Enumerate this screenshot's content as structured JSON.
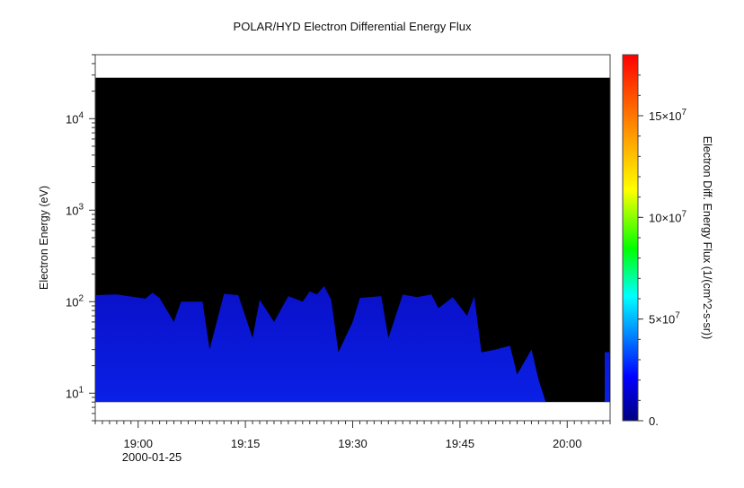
{
  "chart_data": {
    "type": "heatmap",
    "title": "POLAR/HYD  Electron Differential Energy Flux",
    "xlabel": "",
    "ylabel": "Electron Energy (eV)",
    "x_date": "2000-01-25",
    "x_range": [
      "18:54",
      "20:06"
    ],
    "x_ticks": [
      "19:00",
      "19:15",
      "19:30",
      "19:45",
      "20:00"
    ],
    "y_scale": "log",
    "y_range": [
      5,
      50000
    ],
    "y_ticks": [
      {
        "base": "10",
        "exp": "1"
      },
      {
        "base": "10",
        "exp": "2"
      },
      {
        "base": "10",
        "exp": "3"
      },
      {
        "base": "10",
        "exp": "4"
      }
    ],
    "data_energy_range_eV": [
      8,
      28000
    ],
    "colorbar": {
      "label": "Electron Diff. Energy Flux (1/(cm^2-s-sr))",
      "range": [
        0,
        180000000
      ],
      "ticks": [
        {
          "text": "0.",
          "exp": "",
          "value": 0
        },
        {
          "text": "5×10",
          "exp": "7",
          "value": 50000000
        },
        {
          "text": "10×10",
          "exp": "7",
          "value": 100000000
        },
        {
          "text": "15×10",
          "exp": "7",
          "value": 150000000
        }
      ],
      "colors": [
        "#000080",
        "#0000ff",
        "#00ffff",
        "#00ff00",
        "#ffff00",
        "#ff8000",
        "#ff0000"
      ]
    },
    "background_color": "#000000",
    "fill_color": "#0a14d4",
    "upper_envelope_eV": [
      {
        "t": "18:54",
        "e": 118
      },
      {
        "t": "18:57",
        "e": 120
      },
      {
        "t": "19:01",
        "e": 108
      },
      {
        "t": "19:02",
        "e": 125
      },
      {
        "t": "19:03",
        "e": 110
      },
      {
        "t": "19:05",
        "e": 60
      },
      {
        "t": "19:06",
        "e": 100
      },
      {
        "t": "19:09",
        "e": 100
      },
      {
        "t": "19:10",
        "e": 30
      },
      {
        "t": "19:12",
        "e": 122
      },
      {
        "t": "19:14",
        "e": 118
      },
      {
        "t": "19:16",
        "e": 40
      },
      {
        "t": "19:17",
        "e": 105
      },
      {
        "t": "19:19",
        "e": 60
      },
      {
        "t": "19:21",
        "e": 115
      },
      {
        "t": "19:23",
        "e": 100
      },
      {
        "t": "19:24",
        "e": 130
      },
      {
        "t": "19:25",
        "e": 120
      },
      {
        "t": "19:26",
        "e": 148
      },
      {
        "t": "19:27",
        "e": 105
      },
      {
        "t": "19:28",
        "e": 28
      },
      {
        "t": "19:30",
        "e": 60
      },
      {
        "t": "19:31",
        "e": 110
      },
      {
        "t": "19:34",
        "e": 115
      },
      {
        "t": "19:35",
        "e": 40
      },
      {
        "t": "19:37",
        "e": 120
      },
      {
        "t": "19:39",
        "e": 112
      },
      {
        "t": "19:41",
        "e": 120
      },
      {
        "t": "19:42",
        "e": 85
      },
      {
        "t": "19:44",
        "e": 112
      },
      {
        "t": "19:46",
        "e": 70
      },
      {
        "t": "19:47",
        "e": 115
      },
      {
        "t": "19:48",
        "e": 28
      },
      {
        "t": "19:50",
        "e": 30
      },
      {
        "t": "19:52",
        "e": 33
      },
      {
        "t": "19:53",
        "e": 16
      },
      {
        "t": "19:55",
        "e": 30
      },
      {
        "t": "19:56",
        "e": 14
      },
      {
        "t": "19:57",
        "e": 8
      }
    ]
  }
}
